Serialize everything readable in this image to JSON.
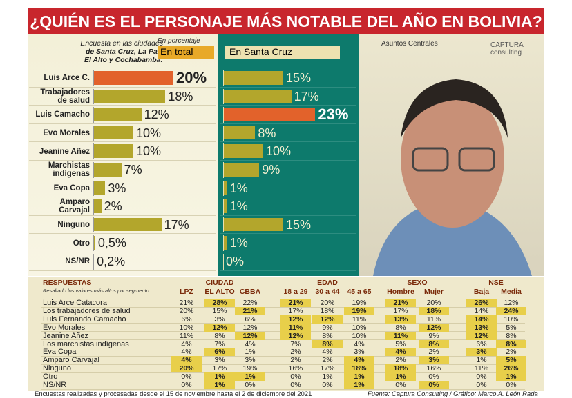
{
  "header": {
    "title": "¿QUIÉN ES EL PERSONAJE MÁS NOTABLE DEL AÑO EN BOLIVIA?",
    "intro": [
      "Encuesta en las ciudades",
      "de Santa Cruz, La Paz,",
      "El Alto y Cochabamba:"
    ],
    "logos": [
      "Asuntos Centrales",
      "CAPTURA consulting"
    ]
  },
  "chart_data": {
    "type": "bar",
    "subtitle": "En porcentaje",
    "categories": [
      "Luis Arce C.",
      "Trabajadores de salud",
      "Luis Camacho",
      "Evo Morales",
      "Jeanine Añez",
      "Marchistas indígenas",
      "Eva Copa",
      "Amparo Carvajal",
      "Ninguno",
      "Otro",
      "NS/NR"
    ],
    "series": [
      {
        "name": "En total",
        "color": "#b3a62c",
        "values": [
          20,
          18,
          12,
          10,
          10,
          7,
          3,
          2,
          17,
          0.5,
          0.2
        ],
        "value_labels": [
          "20%",
          "18%",
          "12%",
          "10%",
          "10%",
          "7%",
          "3%",
          "2%",
          "17%",
          "0,5%",
          "0,2%"
        ],
        "colors": [
          "#e2622b",
          "#b3a62c",
          "#b3a62c",
          "#b3a62c",
          "#b3a62c",
          "#b3a62c",
          "#b3a62c",
          "#b3a62c",
          "#b3a62c",
          "#b3a62c",
          "#b3a62c"
        ]
      },
      {
        "name": "En Santa Cruz",
        "color": "#b3a62c",
        "values": [
          15,
          17,
          23,
          8,
          10,
          9,
          1,
          1,
          15,
          1,
          0
        ],
        "value_labels": [
          "15%",
          "17%",
          "23%",
          "8%",
          "10%",
          "9%",
          "1%",
          "1%",
          "15%",
          "1%",
          "0%"
        ],
        "colors": [
          "#b3a62c",
          "#b3a62c",
          "#e2622b",
          "#b3a62c",
          "#b3a62c",
          "#b3a62c",
          "#b3a62c",
          "#b3a62c",
          "#b3a62c",
          "#b3a62c",
          "#b3a62c"
        ]
      }
    ]
  },
  "table": {
    "title": "RESPUESTAS",
    "note": "Resaltado los valores más altos por segmento",
    "groups": [
      {
        "name": "CIUDAD",
        "columns": [
          "LPZ",
          "EL ALTO",
          "CBBA"
        ]
      },
      {
        "name": "EDAD",
        "columns": [
          "18 a 29",
          "30 a 44",
          "45 a 65"
        ]
      },
      {
        "name": "SEXO",
        "columns": [
          "Hombre",
          "Mujer"
        ]
      },
      {
        "name": "NSE",
        "columns": [
          "Baja",
          "Media"
        ]
      }
    ],
    "rows": [
      {
        "label": "Luis Arce Catacora",
        "cells": [
          "21%",
          "28%",
          "22%",
          "21%",
          "20%",
          "19%",
          "21%",
          "20%",
          "26%",
          "12%"
        ],
        "bold": [
          false,
          true,
          false,
          true,
          false,
          false,
          true,
          false,
          true,
          false
        ]
      },
      {
        "label": "Los trabajadores de salud",
        "cells": [
          "20%",
          "15%",
          "21%",
          "17%",
          "18%",
          "19%",
          "17%",
          "18%",
          "14%",
          "24%"
        ],
        "bold": [
          false,
          false,
          true,
          false,
          false,
          true,
          false,
          true,
          false,
          true
        ]
      },
      {
        "label": "Luis Fernando Camacho",
        "cells": [
          "6%",
          "3%",
          "6%",
          "12%",
          "12%",
          "11%",
          "13%",
          "11%",
          "14%",
          "10%"
        ],
        "bold": [
          false,
          false,
          false,
          true,
          true,
          false,
          true,
          false,
          true,
          false
        ]
      },
      {
        "label": "Evo Morales",
        "cells": [
          "10%",
          "12%",
          "12%",
          "11%",
          "9%",
          "10%",
          "8%",
          "12%",
          "13%",
          "5%"
        ],
        "bold": [
          false,
          true,
          false,
          true,
          false,
          false,
          false,
          true,
          true,
          false
        ]
      },
      {
        "label": "Jeanine Añez",
        "cells": [
          "11%",
          "8%",
          "12%",
          "12%",
          "8%",
          "10%",
          "11%",
          "9%",
          "12%",
          "8%"
        ],
        "bold": [
          false,
          false,
          true,
          true,
          false,
          false,
          true,
          false,
          true,
          false
        ]
      },
      {
        "label": "Los marchistas indígenas",
        "cells": [
          "4%",
          "7%",
          "4%",
          "7%",
          "8%",
          "4%",
          "5%",
          "8%",
          "6%",
          "8%"
        ],
        "bold": [
          false,
          false,
          false,
          false,
          true,
          false,
          false,
          true,
          false,
          true
        ]
      },
      {
        "label": "Eva Copa",
        "cells": [
          "4%",
          "6%",
          "1%",
          "2%",
          "4%",
          "3%",
          "4%",
          "2%",
          "3%",
          "2%"
        ],
        "bold": [
          false,
          true,
          false,
          false,
          false,
          false,
          true,
          false,
          true,
          false
        ]
      },
      {
        "label": "Amparo Carvajal",
        "cells": [
          "4%",
          "3%",
          "3%",
          "2%",
          "2%",
          "4%",
          "2%",
          "3%",
          "1%",
          "5%"
        ],
        "bold": [
          true,
          false,
          false,
          false,
          false,
          true,
          false,
          true,
          false,
          true
        ]
      },
      {
        "label": "Ninguno",
        "cells": [
          "20%",
          "17%",
          "19%",
          "16%",
          "17%",
          "18%",
          "18%",
          "16%",
          "11%",
          "26%"
        ],
        "bold": [
          true,
          false,
          false,
          false,
          false,
          true,
          true,
          false,
          false,
          true
        ]
      },
      {
        "label": "Otro",
        "cells": [
          "0%",
          "1%",
          "1%",
          "0%",
          "1%",
          "1%",
          "1%",
          "0%",
          "0%",
          "1%"
        ],
        "bold": [
          false,
          true,
          true,
          false,
          false,
          true,
          true,
          false,
          false,
          true
        ]
      },
      {
        "label": "NS/NR",
        "cells": [
          "0%",
          "1%",
          "0%",
          "0%",
          "0%",
          "1%",
          "0%",
          "0%",
          "0%",
          "0%"
        ],
        "bold": [
          false,
          true,
          false,
          false,
          false,
          true,
          false,
          true,
          false,
          false
        ]
      }
    ]
  },
  "footer": {
    "left": "Encuestas realizadas y procesadas desde el 15 de noviembre hasta el 2 de diciembre del 2021",
    "right": "Fuente: Captura Consulting / Gráfico: Marco A. León Rada"
  }
}
